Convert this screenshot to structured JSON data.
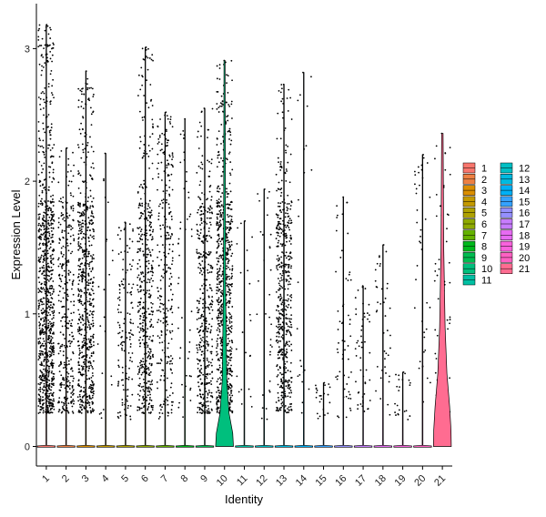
{
  "chart_data": {
    "type": "violin",
    "xlabel": "Identity",
    "ylabel": "Expression Level",
    "ylim": [
      -0.13,
      3.35
    ],
    "yticks": [
      0,
      1,
      2,
      3
    ],
    "categories": [
      "1",
      "2",
      "3",
      "4",
      "5",
      "6",
      "7",
      "8",
      "9",
      "10",
      "11",
      "12",
      "13",
      "14",
      "15",
      "16",
      "17",
      "18",
      "19",
      "20",
      "21"
    ],
    "colors": [
      "#F8766D",
      "#EE8043",
      "#DB8E00",
      "#C49A00",
      "#AFA200",
      "#8FAA00",
      "#64B200",
      "#00B81B",
      "#00BC50",
      "#00BF7D",
      "#00C0A3",
      "#00BFC4",
      "#00BAE0",
      "#00B0F6",
      "#35A2FF",
      "#9590FF",
      "#C77CFF",
      "#E76BF3",
      "#F962DD",
      "#FF61C3",
      "#FF6C91"
    ],
    "max_values": [
      3.18,
      2.25,
      2.83,
      2.21,
      1.69,
      3.01,
      2.52,
      2.47,
      2.55,
      2.91,
      1.7,
      1.94,
      2.73,
      2.82,
      0.48,
      1.88,
      1.21,
      1.52,
      0.56,
      2.2,
      2.36
    ],
    "nonzero_density": [
      1.0,
      0.35,
      0.7,
      0.02,
      0.15,
      0.5,
      0.3,
      0.05,
      0.45,
      0.85,
      0.02,
      0.03,
      0.55,
      0.02,
      0.02,
      0.06,
      0.05,
      0.04,
      0.02,
      0.04,
      0.05
    ],
    "legend": {
      "position": "right",
      "columns": [
        [
          "1",
          "2",
          "3",
          "4",
          "5",
          "6",
          "7",
          "8",
          "9",
          "10",
          "11"
        ],
        [
          "12",
          "13",
          "14",
          "15",
          "16",
          "17",
          "18",
          "19",
          "20",
          "21"
        ]
      ]
    }
  }
}
